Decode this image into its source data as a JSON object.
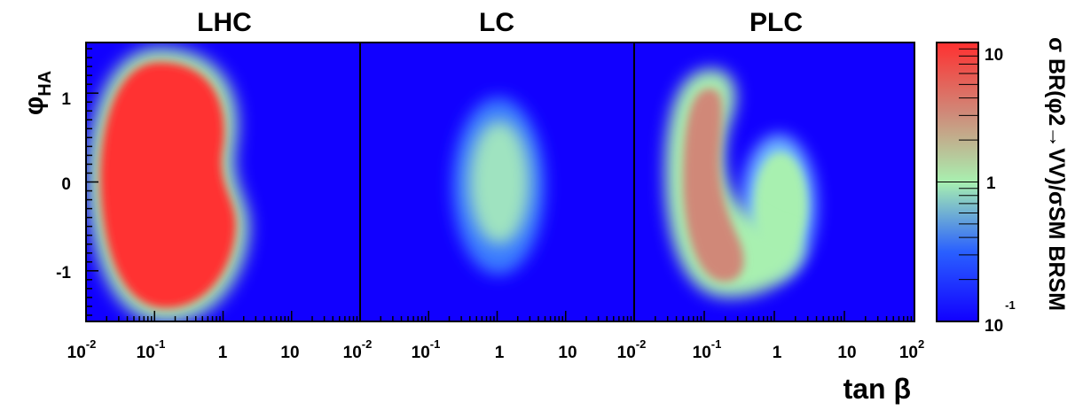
{
  "chart_data": [
    {
      "type": "heatmap",
      "title": "LHC",
      "x": "tan β (log scale)",
      "y": "φHA",
      "blobs": [
        {
          "cx": 0.18,
          "cy": 0.0,
          "sx": 1.05,
          "sy": 1.35,
          "peak": 10,
          "shape": "bean"
        }
      ]
    },
    {
      "type": "heatmap",
      "title": "LC",
      "blobs": [
        {
          "cx": 1.0,
          "cy": 0.0,
          "sx": 0.55,
          "sy": 1.0,
          "peak": 1.0,
          "shape": "ellipse"
        }
      ]
    },
    {
      "type": "heatmap",
      "title": "PLC",
      "blobs": [
        {
          "cx": 0.12,
          "cy": -0.1,
          "sx": 0.75,
          "sy": 1.2,
          "peak": 4,
          "shape": "crescent"
        },
        {
          "cx": 2.0,
          "cy": -0.2,
          "sx": 0.5,
          "sy": 0.8,
          "peak": 1.0,
          "shape": "ellipse"
        }
      ]
    }
  ],
  "axes": {
    "x_tick_values": [
      0.01,
      0.1,
      1,
      10,
      100
    ],
    "x_ticks_panel1": [
      {
        "base": "10",
        "exp": "-2"
      },
      {
        "base": "10",
        "exp": "-1"
      },
      {
        "base": "1",
        "exp": ""
      },
      {
        "base": "10",
        "exp": ""
      }
    ],
    "x_ticks_panel2": [
      {
        "base": "10",
        "exp": "-2"
      },
      {
        "base": "10",
        "exp": "-1"
      },
      {
        "base": "1",
        "exp": ""
      },
      {
        "base": "10",
        "exp": ""
      }
    ],
    "x_ticks_panel3": [
      {
        "base": "10",
        "exp": "-2"
      },
      {
        "base": "10",
        "exp": "-1"
      },
      {
        "base": "1",
        "exp": ""
      },
      {
        "base": "10",
        "exp": ""
      },
      {
        "base": "10",
        "exp": "2"
      }
    ],
    "xlim": [
      0.01,
      100
    ],
    "xlabel": "tan β",
    "ylim": [
      -1.57,
      1.57
    ],
    "y_ticks": [
      {
        "value": 1,
        "label": "1"
      },
      {
        "value": 0,
        "label": "0"
      },
      {
        "value": -1,
        "label": "-1"
      }
    ],
    "ylabel_main": "φ",
    "ylabel_sub": "HA"
  },
  "colorbar": {
    "scale": "log",
    "range": [
      0.1,
      10
    ],
    "top_label_base": "10",
    "mid_label": "1",
    "bottom_label_base": "10",
    "bottom_label_exp": "-1",
    "title": "σ BR(φ2→VV)/σSM BRSM"
  },
  "colors": {
    "low": "#1100ff",
    "mid": "#a8f0b0",
    "high": "#ff3030"
  }
}
